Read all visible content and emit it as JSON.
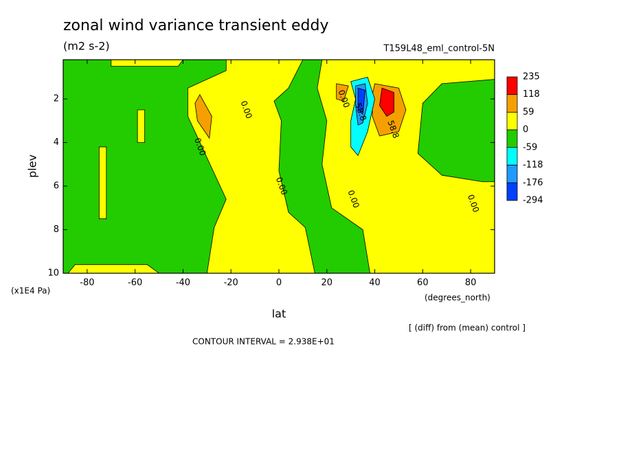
{
  "chart_data": {
    "type": "contour",
    "title": "zonal wind variance transient eddy",
    "subtitle": "(m2 s-2)",
    "dataset_label": "T159L48_eml_control-5N",
    "x_label": "lat",
    "x_units": "(degrees_north)",
    "y_label": "plev",
    "y_units": "(x1E4 Pa)",
    "note": "[ (diff) from (mean) control ]",
    "footer": "CONTOUR INTERVAL = 2.938E+01",
    "xlim": [
      -90,
      90
    ],
    "xticks": [
      -80,
      -60,
      -40,
      -20,
      0,
      20,
      40,
      60,
      80
    ],
    "ylim": [
      0.2,
      10
    ],
    "y_inverted": true,
    "yticks": [
      2,
      4,
      6,
      8,
      10
    ],
    "background_color": "#22cc00",
    "colorbar": {
      "levels": [
        235,
        118,
        59,
        0,
        -59,
        -118,
        -176,
        -294
      ],
      "colors": [
        "#ff0000",
        "#f5a000",
        "#ffff00",
        "#22cc00",
        "#00ffff",
        "#1e9bff",
        "#0040ff"
      ]
    },
    "regions": [
      {
        "color": "#ffff00",
        "points": [
          [
            -22,
            0.2
          ],
          [
            10,
            0.2
          ],
          [
            4,
            1.5
          ],
          [
            -2,
            2.1
          ],
          [
            1,
            3
          ],
          [
            0,
            5.3
          ],
          [
            4,
            7.2
          ],
          [
            11,
            7.9
          ],
          [
            15,
            10
          ],
          [
            -30,
            10
          ],
          [
            -27,
            7.9
          ],
          [
            -22,
            6.6
          ],
          [
            -30,
            4.7
          ],
          [
            -38,
            2.8
          ],
          [
            -38,
            1.5
          ],
          [
            -22,
            0.7
          ]
        ]
      },
      {
        "color": "#ffff00",
        "points": [
          [
            -70,
            0.2
          ],
          [
            -40,
            0.2
          ],
          [
            -42,
            0.5
          ],
          [
            -70,
            0.5
          ]
        ]
      },
      {
        "color": "#ffff00",
        "points": [
          [
            -75,
            4.2
          ],
          [
            -72,
            4.2
          ],
          [
            -72,
            7.5
          ],
          [
            -75,
            7.5
          ]
        ]
      },
      {
        "color": "#ffff00",
        "points": [
          [
            -59,
            2.5
          ],
          [
            -56,
            2.5
          ],
          [
            -56,
            4
          ],
          [
            -59,
            4
          ]
        ]
      },
      {
        "color": "#ffff00",
        "points": [
          [
            -85,
            9.6
          ],
          [
            -55,
            9.6
          ],
          [
            -50,
            10
          ],
          [
            -88,
            10
          ]
        ]
      },
      {
        "color": "#ffff00",
        "points": [
          [
            18,
            0.2
          ],
          [
            90,
            0.2
          ],
          [
            90,
            1.1
          ],
          [
            68,
            1.3
          ],
          [
            60,
            2.2
          ],
          [
            58,
            4.5
          ],
          [
            68,
            5.5
          ],
          [
            85,
            5.8
          ],
          [
            90,
            5.8
          ],
          [
            90,
            10
          ],
          [
            38,
            10
          ],
          [
            35,
            8
          ],
          [
            22,
            7
          ],
          [
            18,
            5
          ],
          [
            20,
            3
          ],
          [
            16,
            1.5
          ]
        ]
      },
      {
        "color": "#f5a000",
        "points": [
          [
            -33,
            1.8
          ],
          [
            -28,
            2.8
          ],
          [
            -29,
            3.8
          ],
          [
            -34,
            3
          ],
          [
            -35,
            2.2
          ]
        ]
      },
      {
        "color": "#f5a000",
        "points": [
          [
            40,
            1.3
          ],
          [
            50,
            1.5
          ],
          [
            53,
            2.5
          ],
          [
            50,
            3.5
          ],
          [
            42,
            3.7
          ],
          [
            39,
            2.8
          ],
          [
            39,
            1.8
          ]
        ]
      },
      {
        "color": "#ff0000",
        "points": [
          [
            43,
            1.5
          ],
          [
            48,
            1.7
          ],
          [
            48,
            2.6
          ],
          [
            45,
            2.8
          ],
          [
            42,
            2.3
          ]
        ]
      },
      {
        "color": "#f5a000",
        "points": [
          [
            24,
            1.3
          ],
          [
            29,
            1.4
          ],
          [
            27,
            2.1
          ],
          [
            24,
            2
          ]
        ]
      },
      {
        "color": "#00ffff",
        "points": [
          [
            30,
            1.2
          ],
          [
            37,
            1
          ],
          [
            40,
            2
          ],
          [
            37,
            3.5
          ],
          [
            33,
            4.6
          ],
          [
            30,
            4.2
          ],
          [
            30,
            3
          ],
          [
            32,
            2
          ]
        ]
      },
      {
        "color": "#1e9bff",
        "points": [
          [
            32,
            1.4
          ],
          [
            36,
            1.3
          ],
          [
            37,
            2.2
          ],
          [
            35,
            3.1
          ],
          [
            33,
            3.2
          ],
          [
            32,
            2.3
          ]
        ]
      },
      {
        "color": "#0040ff",
        "points": [
          [
            33,
            1.5
          ],
          [
            36,
            1.6
          ],
          [
            35,
            2.7
          ],
          [
            33,
            2.5
          ]
        ]
      }
    ],
    "contour_labels": [
      {
        "value": 0,
        "label": "0.00",
        "x": -33,
        "y": 4.2
      },
      {
        "value": 0,
        "label": "0.00",
        "x": -13.7,
        "y": 2.5
      },
      {
        "value": 0,
        "label": "0.00",
        "x": 1,
        "y": 6
      },
      {
        "value": 0,
        "label": "0.00",
        "x": 27,
        "y": 2
      },
      {
        "value": 0,
        "label": "0.00",
        "x": 31,
        "y": 6.6
      },
      {
        "value": 58.8,
        "label": "58.8",
        "x": 34,
        "y": 2.6
      },
      {
        "value": 58.8,
        "label": "58.8",
        "x": 47.6,
        "y": 3.4
      },
      {
        "value": 0,
        "label": "0.00",
        "x": 81,
        "y": 6.8
      }
    ]
  }
}
